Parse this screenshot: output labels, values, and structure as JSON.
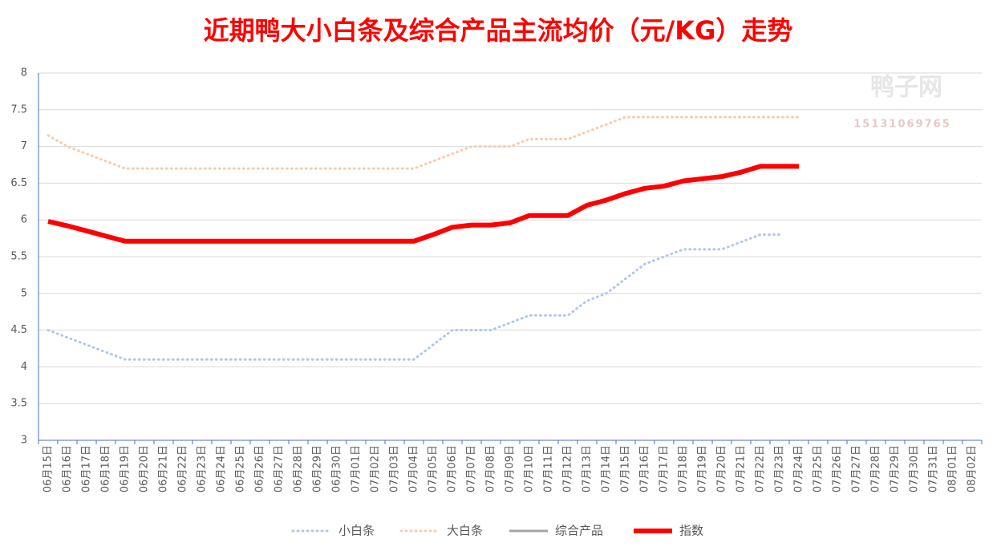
{
  "chart_data": {
    "type": "line",
    "title": "近期鸭大小白条及综合产品主流均价（元/KG）走势",
    "watermark": [
      "鸭子网",
      "15131069765"
    ],
    "categories": [
      "06月15日",
      "06月16日",
      "06月17日",
      "06月18日",
      "06月19日",
      "06月20日",
      "06月21日",
      "06月22日",
      "06月23日",
      "06月24日",
      "06月25日",
      "06月26日",
      "06月27日",
      "06月28日",
      "06月29日",
      "06月30日",
      "07月01日",
      "07月02日",
      "07月03日",
      "07月04日",
      "07月05日",
      "07月06日",
      "07月07日",
      "07月08日",
      "07月09日",
      "07月10日",
      "07月11日",
      "07月12日",
      "07月13日",
      "07月14日",
      "07月15日",
      "07月16日",
      "07月17日",
      "07月18日",
      "07月19日",
      "07月20日",
      "07月21日",
      "07月22日",
      "07月23日",
      "07月24日",
      "07月25日",
      "07月26日",
      "07月27日",
      "07月28日",
      "07月29日",
      "07月30日",
      "07月31日",
      "08月01日",
      "08月02日"
    ],
    "series": [
      {
        "name": "小白条",
        "color": "#b4c7e7",
        "style": "dotted",
        "values": [
          4.5,
          4.4,
          4.3,
          4.2,
          4.1,
          4.1,
          4.1,
          4.1,
          4.1,
          4.1,
          4.1,
          4.1,
          4.1,
          4.1,
          4.1,
          4.1,
          4.1,
          4.1,
          4.1,
          4.1,
          4.3,
          4.5,
          4.5,
          4.5,
          4.6,
          4.7,
          4.7,
          4.7,
          4.9,
          5.0,
          5.2,
          5.4,
          5.5,
          5.6,
          5.6,
          5.6,
          5.7,
          5.8,
          5.8,
          null,
          null,
          null,
          null,
          null,
          null,
          null,
          null,
          null,
          null
        ]
      },
      {
        "name": "大白条",
        "color": "#f8cbad",
        "style": "dotted",
        "values": [
          7.15,
          7.0,
          6.9,
          6.8,
          6.7,
          6.7,
          6.7,
          6.7,
          6.7,
          6.7,
          6.7,
          6.7,
          6.7,
          6.7,
          6.7,
          6.7,
          6.7,
          6.7,
          6.7,
          6.7,
          6.8,
          6.9,
          7.0,
          7.0,
          7.0,
          7.1,
          7.1,
          7.1,
          7.2,
          7.3,
          7.4,
          7.4,
          7.4,
          7.4,
          7.4,
          7.4,
          7.4,
          7.4,
          7.4,
          7.4,
          null,
          null,
          null,
          null,
          null,
          null,
          null,
          null,
          null
        ]
      },
      {
        "name": "综合产品",
        "color": "#a5a5a5",
        "style": "solid",
        "values": [
          null,
          null,
          null,
          null,
          null,
          null,
          null,
          null,
          null,
          null,
          null,
          null,
          null,
          null,
          null,
          null,
          null,
          null,
          null,
          null,
          null,
          null,
          null,
          null,
          null,
          null,
          null,
          null,
          null,
          null,
          null,
          null,
          null,
          null,
          null,
          null,
          null,
          null,
          null,
          null,
          null,
          null,
          null,
          null,
          null,
          null,
          null,
          null,
          null
        ]
      },
      {
        "name": "指数",
        "color": "#ff0000",
        "style": "thick",
        "values": [
          5.98,
          5.92,
          5.85,
          5.78,
          5.71,
          5.71,
          5.71,
          5.71,
          5.71,
          5.71,
          5.71,
          5.71,
          5.71,
          5.71,
          5.71,
          5.71,
          5.71,
          5.71,
          5.71,
          5.71,
          5.8,
          5.9,
          5.93,
          5.93,
          5.96,
          6.06,
          6.06,
          6.06,
          6.2,
          6.27,
          6.36,
          6.43,
          6.46,
          6.53,
          6.56,
          6.59,
          6.65,
          6.73,
          6.73,
          6.73,
          null,
          null,
          null,
          null,
          null,
          null,
          null,
          null,
          null
        ]
      }
    ],
    "ylim": [
      3,
      8
    ],
    "yticks": [
      3,
      3.5,
      4,
      4.5,
      5,
      5.5,
      6,
      6.5,
      7,
      7.5,
      8
    ],
    "grid": true,
    "legend": "bottom"
  }
}
